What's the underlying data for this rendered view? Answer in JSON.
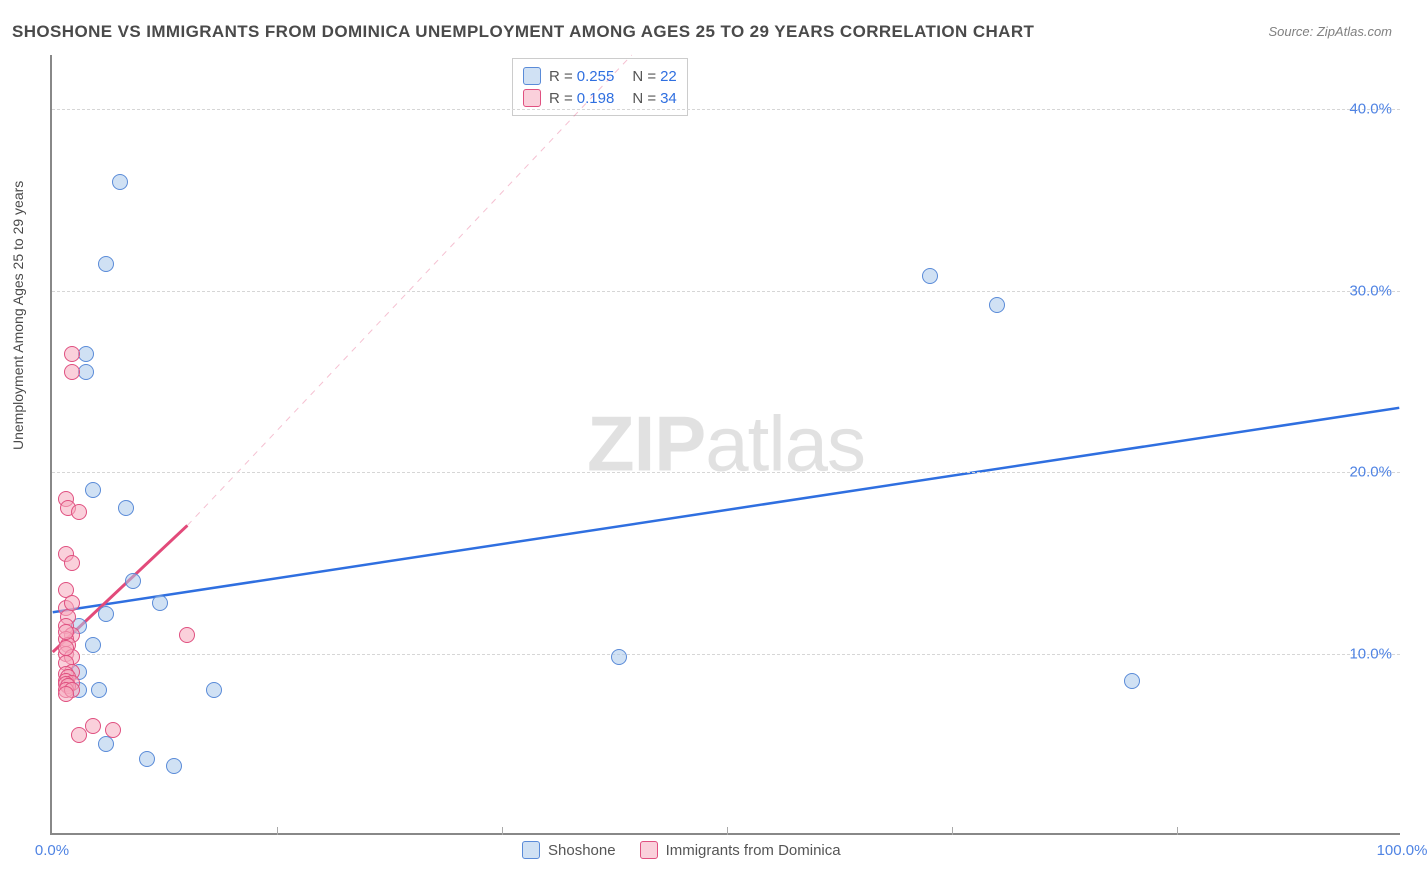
{
  "title": "SHOSHONE VS IMMIGRANTS FROM DOMINICA UNEMPLOYMENT AMONG AGES 25 TO 29 YEARS CORRELATION CHART",
  "source": "Source: ZipAtlas.com",
  "ylabel": "Unemployment Among Ages 25 to 29 years",
  "watermark_a": "ZIP",
  "watermark_b": "atlas",
  "chart": {
    "type": "scatter",
    "xlim": [
      0,
      100
    ],
    "ylim": [
      0,
      43
    ],
    "yticks": [
      10,
      20,
      30,
      40
    ],
    "ytick_labels": [
      "10.0%",
      "20.0%",
      "30.0%",
      "40.0%"
    ],
    "xticks": [
      0,
      100
    ],
    "xtick_labels": [
      "0.0%",
      "100.0%"
    ],
    "x_minor_ticks": [
      16.67,
      33.33,
      50.0,
      66.67,
      83.33
    ],
    "grid_color": "#d6d6d6",
    "background_color": "#ffffff",
    "axis_color": "#888888",
    "point_radius": 8,
    "title_fontsize": 17,
    "label_fontsize": 14,
    "tick_color": "#4f83e3"
  },
  "series": [
    {
      "name": "Shoshone",
      "legend_label": "Shoshone",
      "R": "0.255",
      "N": "22",
      "fill": "rgba(170,200,235,0.55)",
      "stroke": "#5a8bd8",
      "trend": {
        "x1": 0,
        "y1": 12.2,
        "x2": 100,
        "y2": 23.5,
        "dashed": false,
        "width": 2.5
      },
      "points": [
        [
          5.0,
          36.0
        ],
        [
          4.0,
          31.5
        ],
        [
          3.0,
          19.0
        ],
        [
          5.5,
          18.0
        ],
        [
          65.0,
          30.8
        ],
        [
          70.0,
          29.2
        ],
        [
          6.0,
          14.0
        ],
        [
          8.0,
          12.8
        ],
        [
          4.0,
          12.2
        ],
        [
          3.0,
          10.5
        ],
        [
          3.5,
          8.0
        ],
        [
          42.0,
          9.8
        ],
        [
          80.0,
          8.5
        ],
        [
          12.0,
          8.0
        ],
        [
          4.0,
          5.0
        ],
        [
          7.0,
          4.2
        ],
        [
          9.0,
          3.8
        ],
        [
          2.5,
          25.5
        ],
        [
          2.5,
          26.5
        ],
        [
          2.0,
          11.5
        ],
        [
          2.0,
          9.0
        ],
        [
          2.0,
          8.0
        ]
      ]
    },
    {
      "name": "Immigrants from Dominica",
      "legend_label": "Immigrants from Dominica",
      "R": "0.198",
      "N": "34",
      "fill": "rgba(245,170,190,0.55)",
      "stroke": "#e05080",
      "trend_solid": {
        "x1": 0,
        "y1": 10.0,
        "x2": 10,
        "y2": 17.0,
        "dashed": false,
        "width": 3
      },
      "trend_dash": {
        "x1": 10,
        "y1": 17.0,
        "x2": 43,
        "y2": 43.0,
        "dashed": true,
        "width": 1
      },
      "points": [
        [
          1.5,
          26.5
        ],
        [
          1.5,
          25.5
        ],
        [
          1.0,
          18.5
        ],
        [
          1.2,
          18.0
        ],
        [
          2.0,
          17.8
        ],
        [
          1.0,
          15.5
        ],
        [
          1.5,
          15.0
        ],
        [
          1.0,
          13.5
        ],
        [
          1.0,
          12.5
        ],
        [
          1.2,
          12.0
        ],
        [
          1.0,
          11.5
        ],
        [
          1.5,
          11.0
        ],
        [
          10.0,
          11.0
        ],
        [
          1.0,
          10.8
        ],
        [
          1.2,
          10.5
        ],
        [
          1.0,
          10.0
        ],
        [
          1.5,
          9.8
        ],
        [
          1.0,
          9.5
        ],
        [
          1.5,
          9.0
        ],
        [
          1.0,
          8.9
        ],
        [
          1.2,
          8.7
        ],
        [
          1.0,
          8.5
        ],
        [
          1.5,
          8.4
        ],
        [
          1.0,
          8.3
        ],
        [
          1.2,
          8.2
        ],
        [
          1.0,
          8.0
        ],
        [
          1.5,
          8.0
        ],
        [
          1.0,
          7.8
        ],
        [
          3.0,
          6.0
        ],
        [
          2.0,
          5.5
        ],
        [
          4.5,
          5.8
        ],
        [
          1.0,
          11.2
        ],
        [
          1.0,
          10.3
        ],
        [
          1.5,
          12.8
        ]
      ]
    }
  ]
}
